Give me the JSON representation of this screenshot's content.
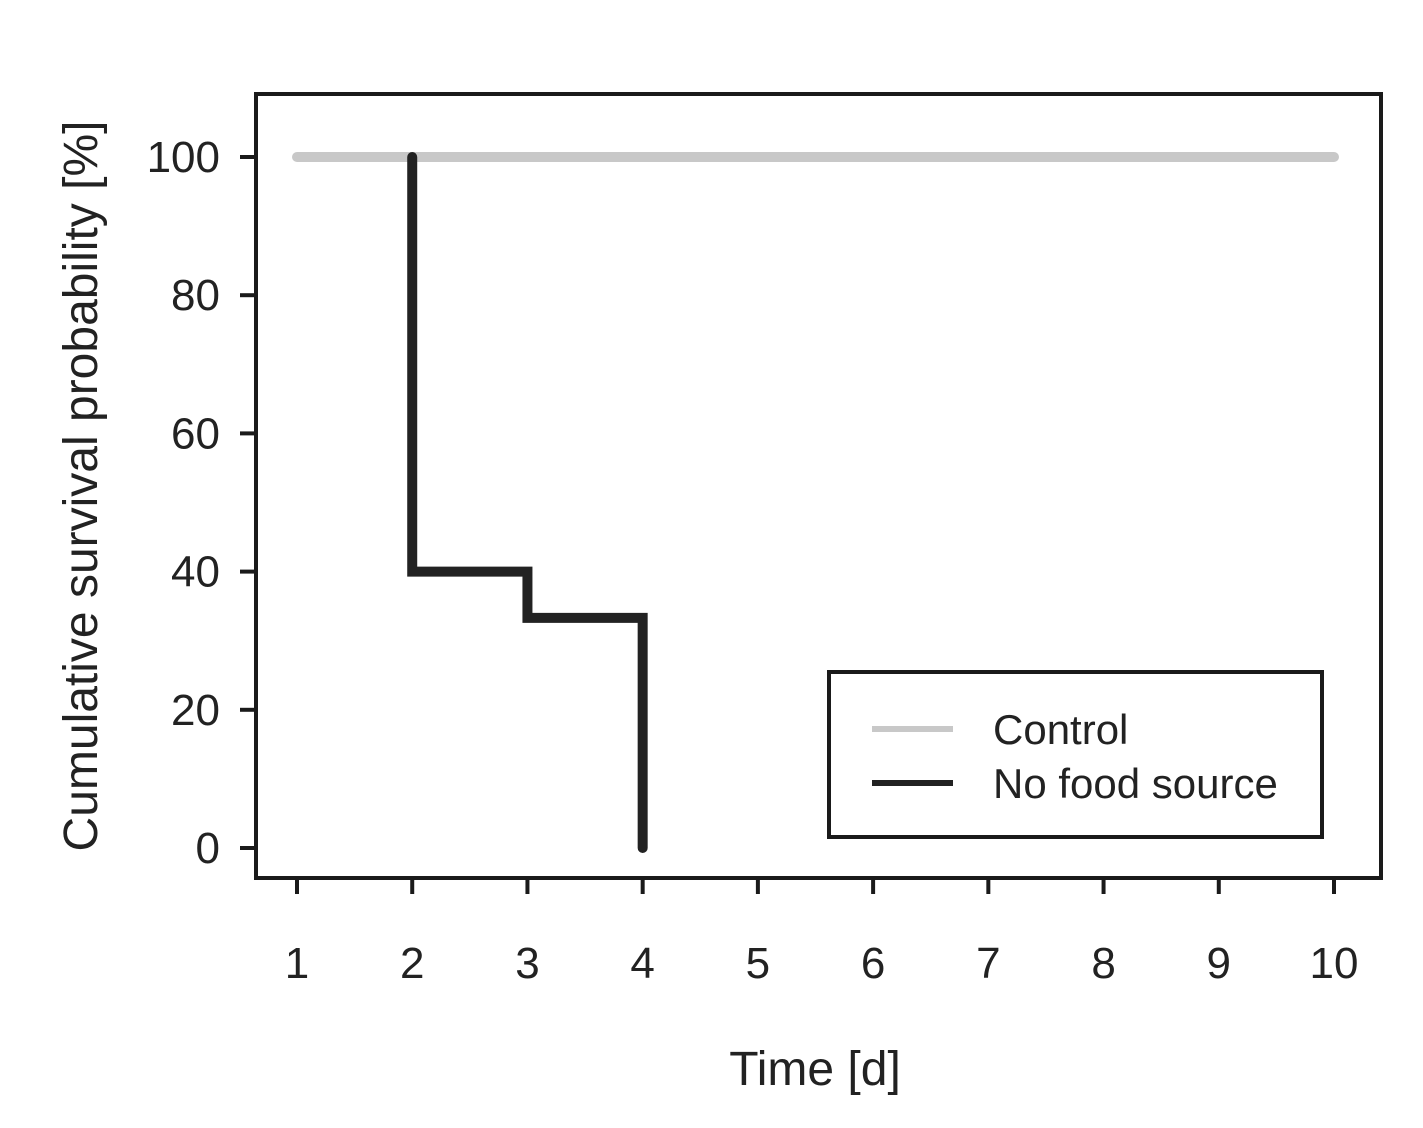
{
  "chart_data": {
    "type": "line",
    "step": true,
    "xlabel": "Time [d]",
    "ylabel": "Cumulative survival probability [%]",
    "xlim": [
      1,
      10
    ],
    "ylim": [
      0,
      100
    ],
    "x_ticks": [
      1,
      2,
      3,
      4,
      5,
      6,
      7,
      8,
      9,
      10
    ],
    "y_ticks": [
      0,
      20,
      40,
      60,
      80,
      100
    ],
    "grid": false,
    "legend_position": "bottom-right",
    "series": [
      {
        "name": "Control",
        "color": "#c8c8c8",
        "points": [
          [
            1,
            100
          ],
          [
            10,
            100
          ]
        ]
      },
      {
        "name": "No food source",
        "color": "#222222",
        "points": [
          [
            2,
            100
          ],
          [
            2,
            40
          ],
          [
            3,
            40
          ],
          [
            3,
            33.3
          ],
          [
            4,
            33.3
          ],
          [
            4,
            0
          ]
        ]
      }
    ]
  }
}
